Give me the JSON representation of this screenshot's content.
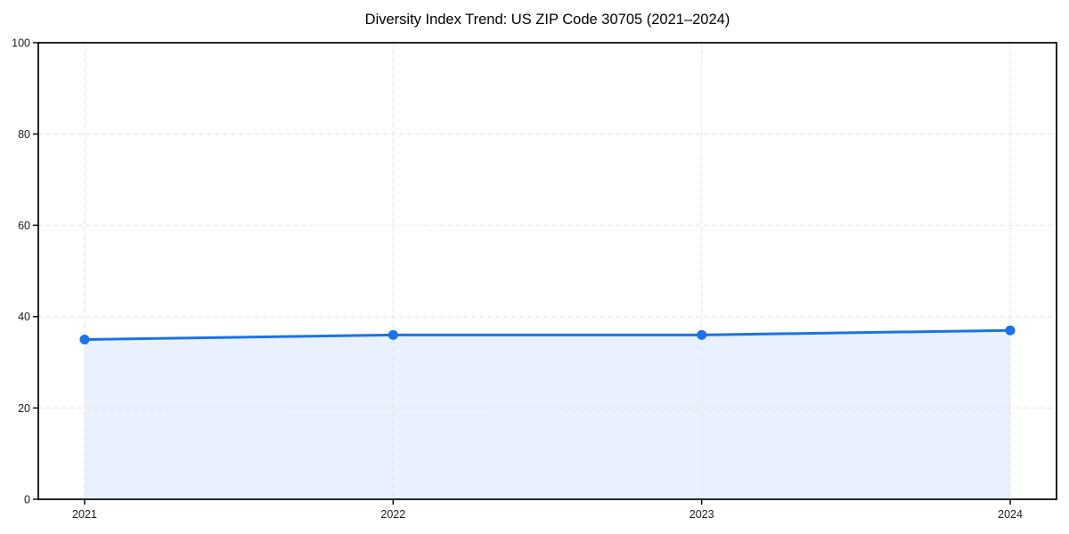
{
  "chart_data": {
    "type": "area",
    "title": "Diversity Index Trend: US ZIP Code 30705 (2021–2024)",
    "x": [
      2021,
      2022,
      2023,
      2024
    ],
    "categories": [
      "2021",
      "2022",
      "2023",
      "2024"
    ],
    "series": [
      {
        "name": "Diversity Index",
        "values": [
          35.0,
          36.0,
          36.0,
          37.0
        ]
      }
    ],
    "xlabel": "",
    "ylabel": "",
    "xlim": [
      2020.85,
      2024.15
    ],
    "ylim": [
      0,
      100
    ],
    "yticks": [
      0,
      20,
      40,
      60,
      80,
      100
    ],
    "grid": {
      "show": true,
      "style": "dashed",
      "color": "#e3e3e3"
    },
    "legend": "none",
    "colors": {
      "line": "#1a73e8",
      "marker": "#1a73e8",
      "fill": "rgba(26,115,232,0.10)",
      "spine": "#000000",
      "tick_label": "#1a1a1a",
      "title": "#000000"
    }
  }
}
